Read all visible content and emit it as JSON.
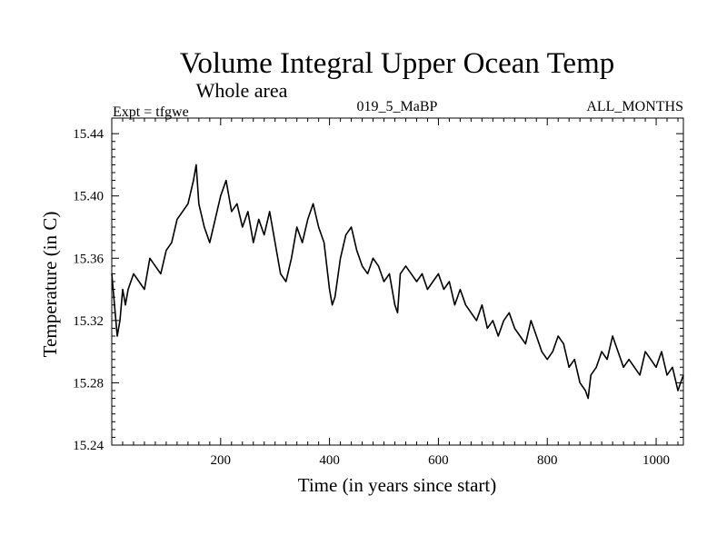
{
  "chart_data": {
    "type": "line",
    "title": "Volume Integral Upper Ocean Temp",
    "subtitle": "Whole area",
    "annotations": {
      "left": "Expt = tfgwe",
      "center": "019_5_MaBP",
      "right": "ALL_MONTHS"
    },
    "xlabel": "Time (in years since start)",
    "ylabel": "Temperature (in C)",
    "xlim": [
      0,
      1050
    ],
    "ylim": [
      15.24,
      15.45
    ],
    "x_ticks": [
      200,
      400,
      600,
      800,
      1000
    ],
    "y_ticks": [
      15.24,
      15.28,
      15.32,
      15.36,
      15.4,
      15.44
    ],
    "y_tick_labels": [
      "15.24",
      "15.28",
      "15.32",
      "15.36",
      "15.40",
      "15.44"
    ],
    "grid": false,
    "series": [
      {
        "name": "Volume integral upper ocean temperature",
        "x": [
          0,
          5,
          10,
          15,
          20,
          25,
          30,
          40,
          50,
          60,
          70,
          80,
          90,
          100,
          110,
          120,
          130,
          140,
          150,
          155,
          160,
          170,
          180,
          190,
          200,
          210,
          220,
          230,
          240,
          250,
          260,
          270,
          280,
          290,
          300,
          310,
          320,
          330,
          340,
          350,
          360,
          370,
          380,
          390,
          400,
          405,
          410,
          420,
          430,
          440,
          450,
          460,
          470,
          480,
          490,
          500,
          510,
          520,
          525,
          530,
          540,
          550,
          560,
          570,
          580,
          590,
          600,
          610,
          620,
          630,
          640,
          650,
          660,
          670,
          680,
          690,
          700,
          710,
          720,
          730,
          740,
          750,
          760,
          770,
          780,
          790,
          800,
          810,
          820,
          830,
          840,
          850,
          860,
          870,
          875,
          880,
          890,
          900,
          910,
          920,
          930,
          940,
          950,
          960,
          970,
          980,
          990,
          1000,
          1010,
          1020,
          1030,
          1040,
          1045,
          1050
        ],
        "values": [
          15.35,
          15.33,
          15.31,
          15.32,
          15.34,
          15.33,
          15.34,
          15.35,
          15.345,
          15.34,
          15.36,
          15.355,
          15.35,
          15.365,
          15.37,
          15.385,
          15.39,
          15.395,
          15.41,
          15.42,
          15.395,
          15.38,
          15.37,
          15.385,
          15.4,
          15.41,
          15.39,
          15.395,
          15.38,
          15.39,
          15.37,
          15.385,
          15.375,
          15.39,
          15.37,
          15.35,
          15.345,
          15.36,
          15.38,
          15.37,
          15.385,
          15.395,
          15.38,
          15.37,
          15.34,
          15.33,
          15.335,
          15.36,
          15.375,
          15.38,
          15.365,
          15.355,
          15.35,
          15.36,
          15.355,
          15.345,
          15.35,
          15.33,
          15.325,
          15.35,
          15.355,
          15.35,
          15.345,
          15.35,
          15.34,
          15.345,
          15.35,
          15.34,
          15.345,
          15.33,
          15.34,
          15.33,
          15.325,
          15.32,
          15.33,
          15.315,
          15.32,
          15.31,
          15.32,
          15.325,
          15.315,
          15.31,
          15.305,
          15.32,
          15.31,
          15.3,
          15.295,
          15.3,
          15.31,
          15.305,
          15.29,
          15.295,
          15.28,
          15.275,
          15.27,
          15.285,
          15.29,
          15.3,
          15.295,
          15.31,
          15.3,
          15.29,
          15.295,
          15.29,
          15.285,
          15.3,
          15.295,
          15.29,
          15.3,
          15.285,
          15.29,
          15.275,
          15.28,
          15.285
        ]
      }
    ]
  }
}
